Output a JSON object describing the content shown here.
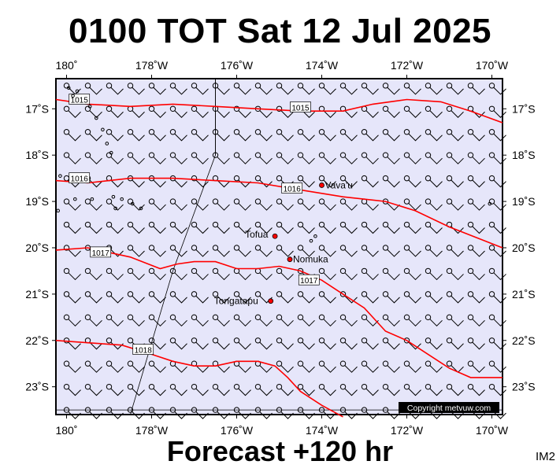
{
  "title": "0100 TOT Sat 12 Jul 2025",
  "footer": "Forecast +120 hr",
  "product_code": "IM2",
  "copyright": "Copyright metvuw.com",
  "colors": {
    "background": "#e6e6fa",
    "isobar": "#ff0000",
    "land": "#000000",
    "place_marker": "#ff0000",
    "wind_barb": "#000000"
  },
  "map": {
    "lon_range": [
      179.75,
      190.25
    ],
    "lat_range": [
      -23.6,
      -16.35
    ],
    "lon_ticks": [
      {
        "lon": 180,
        "label": "180˚"
      },
      {
        "lon": 182,
        "label": "178˚W"
      },
      {
        "lon": 184,
        "label": "176˚W"
      },
      {
        "lon": 186,
        "label": "174˚W"
      },
      {
        "lon": 188,
        "label": "172˚W"
      },
      {
        "lon": 190,
        "label": "170˚W"
      }
    ],
    "lat_ticks": [
      {
        "lat": -17,
        "label": "17˚S"
      },
      {
        "lat": -18,
        "label": "18˚S"
      },
      {
        "lat": -19,
        "label": "19˚S"
      },
      {
        "lat": -20,
        "label": "20˚S"
      },
      {
        "lat": -21,
        "label": "21˚S"
      },
      {
        "lat": -22,
        "label": "22˚S"
      },
      {
        "lat": -23,
        "label": "23˚S"
      }
    ],
    "places": [
      {
        "name": "Vava'u",
        "lon": 186.0,
        "lat": -18.65
      },
      {
        "name": "Tofua",
        "lon": 184.9,
        "lat": -19.75
      },
      {
        "name": "Nomuka",
        "lon": 185.25,
        "lat": -20.25
      },
      {
        "name": "Tongatapu",
        "lon": 184.8,
        "lat": -21.15
      }
    ],
    "isobars": [
      {
        "label": "1015",
        "label_at": [
          180.3,
          -16.8
        ],
        "points": [
          [
            179.75,
            -16.8
          ],
          [
            180.5,
            -16.9
          ],
          [
            181.5,
            -16.95
          ],
          [
            182.5,
            -16.9
          ],
          [
            183.5,
            -16.95
          ],
          [
            184.5,
            -17.0
          ],
          [
            185.5,
            -17.05
          ],
          [
            186.5,
            -17.05
          ],
          [
            187.2,
            -16.9
          ],
          [
            188.0,
            -16.8
          ],
          [
            188.8,
            -16.85
          ],
          [
            189.5,
            -17.05
          ],
          [
            190.25,
            -17.3
          ]
        ]
      },
      {
        "label": "1015",
        "label_at": [
          185.5,
          -16.97
        ],
        "points": []
      },
      {
        "label": "1016",
        "label_at": [
          180.3,
          -18.5
        ],
        "points": [
          [
            179.75,
            -18.55
          ],
          [
            180.5,
            -18.6
          ],
          [
            181.5,
            -18.5
          ],
          [
            182.5,
            -18.5
          ],
          [
            183.5,
            -18.55
          ],
          [
            184.5,
            -18.6
          ],
          [
            185.5,
            -18.75
          ],
          [
            186.5,
            -18.9
          ],
          [
            187.5,
            -19.0
          ],
          [
            188.2,
            -19.2
          ],
          [
            189.0,
            -19.55
          ],
          [
            190.25,
            -20.0
          ]
        ]
      },
      {
        "label": "1016",
        "label_at": [
          185.3,
          -18.72
        ],
        "points": []
      },
      {
        "label": "1017",
        "label_at": [
          180.8,
          -20.1
        ],
        "points": [
          [
            179.75,
            -20.05
          ],
          [
            180.5,
            -20.0
          ],
          [
            181.5,
            -20.2
          ],
          [
            182.2,
            -20.45
          ],
          [
            182.6,
            -20.35
          ],
          [
            183.0,
            -20.3
          ],
          [
            183.5,
            -20.3
          ],
          [
            184.0,
            -20.45
          ],
          [
            184.5,
            -20.45
          ],
          [
            185.0,
            -20.4
          ],
          [
            185.5,
            -20.5
          ],
          [
            186.0,
            -20.7
          ],
          [
            186.5,
            -21.0
          ],
          [
            187.0,
            -21.3
          ],
          [
            187.5,
            -21.8
          ],
          [
            188.0,
            -22.0
          ],
          [
            188.5,
            -22.3
          ],
          [
            189.0,
            -22.6
          ],
          [
            189.5,
            -22.8
          ],
          [
            190.25,
            -22.8
          ]
        ]
      },
      {
        "label": "1017",
        "label_at": [
          185.7,
          -20.7
        ],
        "points": []
      },
      {
        "label": "1018",
        "label_at": [
          181.8,
          -22.2
        ],
        "points": [
          [
            179.75,
            -22.0
          ],
          [
            180.5,
            -22.05
          ],
          [
            181.3,
            -22.1
          ],
          [
            182.0,
            -22.3
          ],
          [
            182.5,
            -22.45
          ],
          [
            183.0,
            -22.55
          ],
          [
            183.5,
            -22.55
          ],
          [
            184.0,
            -22.45
          ],
          [
            184.5,
            -22.45
          ],
          [
            184.9,
            -22.55
          ],
          [
            185.2,
            -22.8
          ],
          [
            185.5,
            -23.1
          ],
          [
            186.0,
            -23.4
          ],
          [
            186.5,
            -23.65
          ]
        ]
      }
    ],
    "guide_lines": [
      {
        "points": [
          [
            183.5,
            -16.35
          ],
          [
            183.5,
            -18.0
          ],
          [
            182.5,
            -20.5
          ],
          [
            181.5,
            -23.6
          ]
        ]
      },
      {
        "points": [
          [
            179.75,
            -23.5
          ],
          [
            190.25,
            -23.5
          ]
        ]
      },
      {
        "points": [
          [
            183.5,
            -16.35
          ],
          [
            183.5,
            -18.0
          ]
        ]
      }
    ]
  }
}
